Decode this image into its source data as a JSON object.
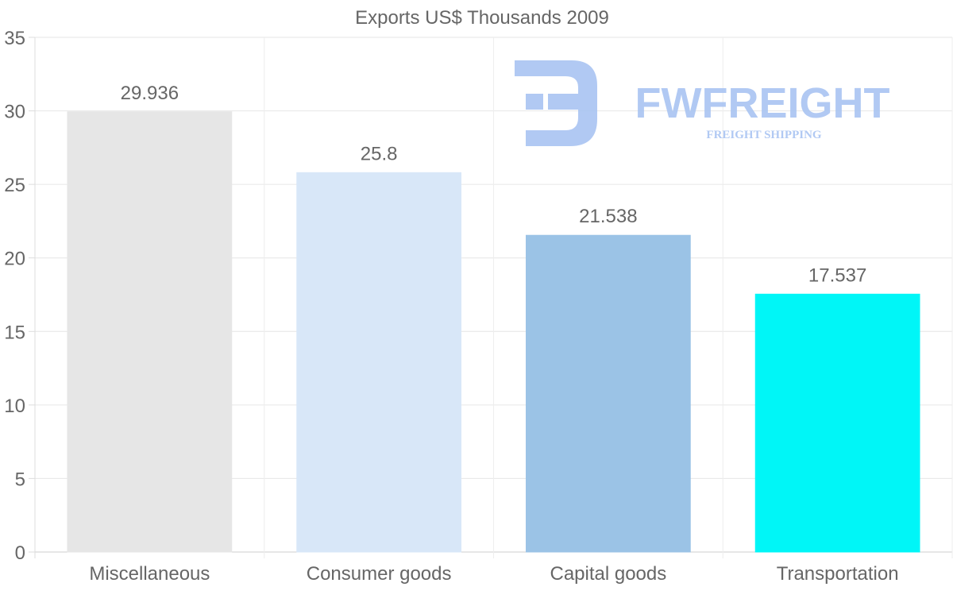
{
  "chart_data": {
    "type": "bar",
    "title": "Exports US$ Thousands 2009",
    "categories": [
      "Miscellaneous",
      "Consumer goods",
      "Capital goods",
      "Transportation"
    ],
    "values": [
      29.936,
      25.8,
      21.538,
      17.537
    ],
    "value_labels": [
      "29.936",
      "25.8",
      "21.538",
      "17.537"
    ],
    "colors": [
      "#e6e6e6",
      "#d8e7f8",
      "#9bc3e6",
      "#00f6f7"
    ],
    "ylim": [
      0,
      35
    ],
    "yticks": [
      0,
      5,
      10,
      15,
      20,
      25,
      30,
      35
    ],
    "xlabel": "",
    "ylabel": "",
    "grid": true,
    "legend": "none"
  },
  "watermark": {
    "brand": "FWFREIGHT",
    "tagline": "FREIGHT SHIPPING",
    "color": "#a9c4f2"
  }
}
